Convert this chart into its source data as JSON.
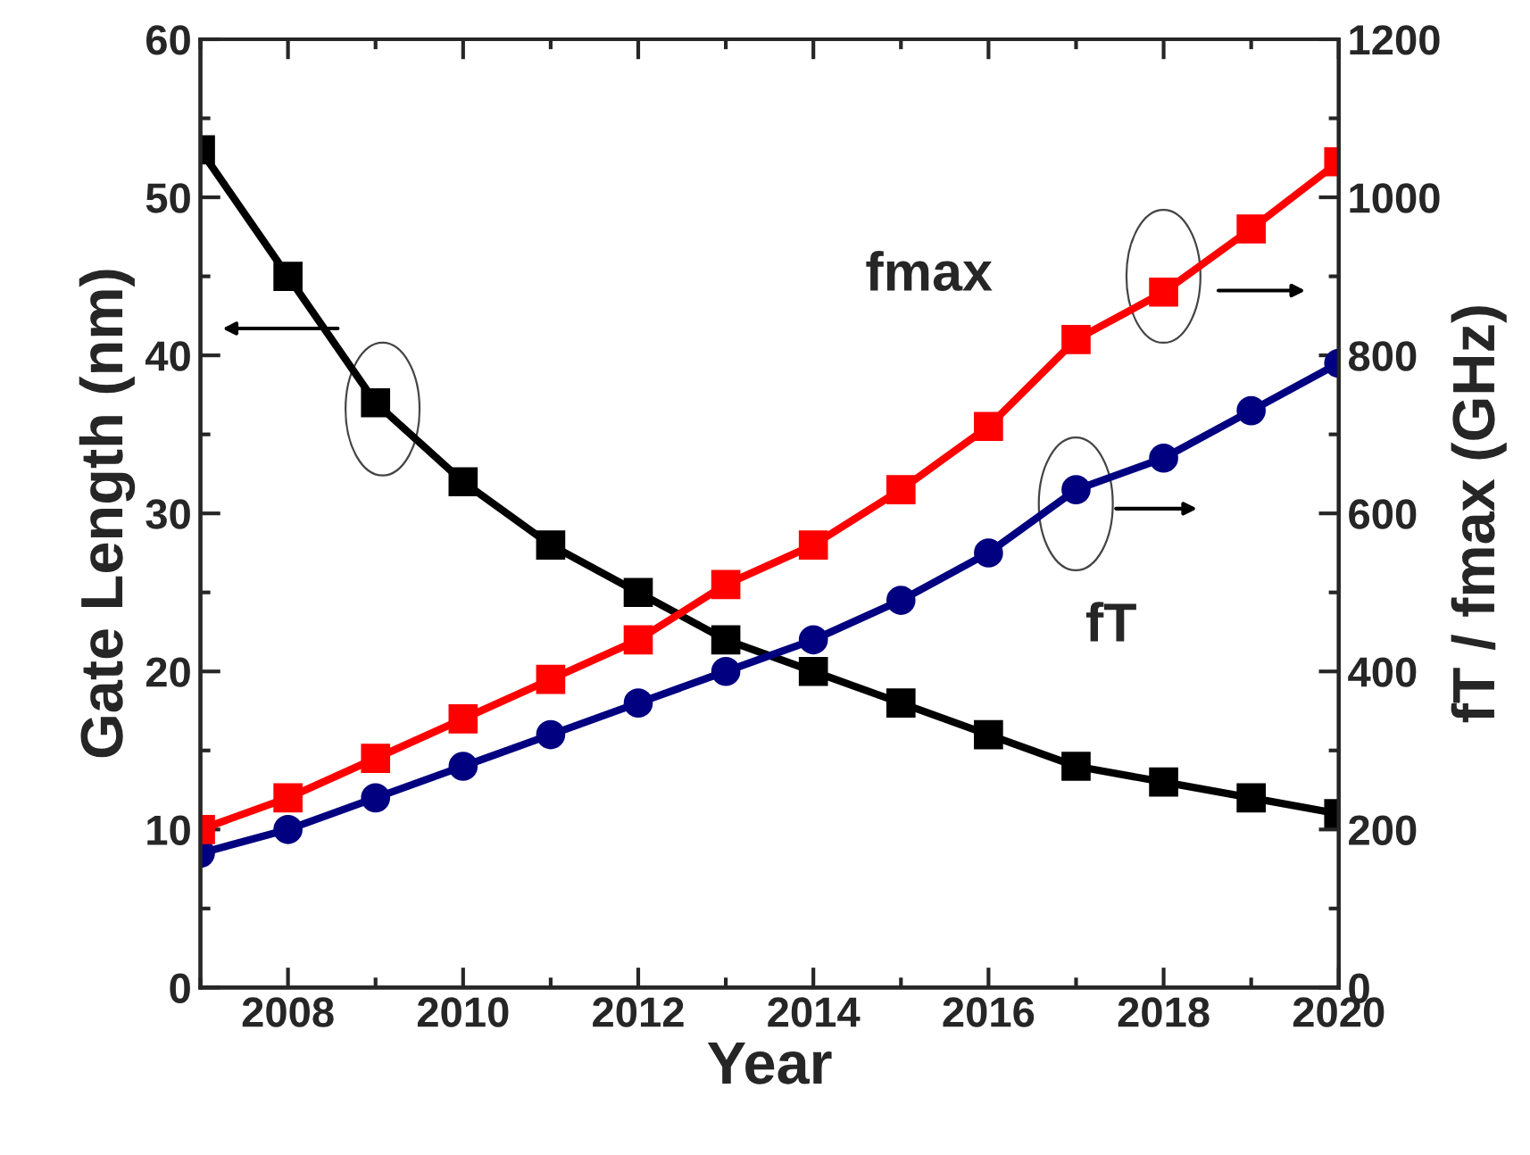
{
  "chart_data": {
    "type": "line",
    "xlabel": "Year",
    "ylabel": "Gate Length (nm)",
    "y2label": "fT / fmax (GHz)",
    "x": [
      2007,
      2008,
      2009,
      2010,
      2011,
      2012,
      2013,
      2014,
      2015,
      2016,
      2017,
      2018,
      2019,
      2020
    ],
    "series": [
      {
        "color": "#000000",
        "marker": "square",
        "values": [
          53,
          45,
          37,
          32,
          28,
          25,
          22,
          20,
          18,
          16,
          14,
          13,
          12,
          11
        ]
      },
      {
        "name": "fT",
        "color": "#000080",
        "marker": "circle",
        "axis": "y2",
        "values": [
          170,
          200,
          240,
          280,
          320,
          360,
          400,
          440,
          490,
          550,
          630,
          670,
          730,
          790
        ]
      },
      {
        "name": "fmax",
        "color": "#ff0000",
        "marker": "square",
        "axis": "y2",
        "values": [
          200,
          240,
          290,
          340,
          390,
          440,
          510,
          560,
          630,
          710,
          820,
          880,
          960,
          1045
        ]
      }
    ],
    "xlim": [
      2007,
      2020
    ],
    "xticks": [
      2008,
      2010,
      2012,
      2014,
      2016,
      2018,
      2020
    ],
    "ylim": [
      0,
      60
    ],
    "yticks": [
      0,
      10,
      20,
      30,
      40,
      50,
      60
    ],
    "y2lim": [
      0,
      1200
    ],
    "y2ticks": [
      0,
      200,
      400,
      600,
      800,
      1000,
      1200
    ],
    "grid": false,
    "legend": false,
    "line_style": "solid"
  }
}
